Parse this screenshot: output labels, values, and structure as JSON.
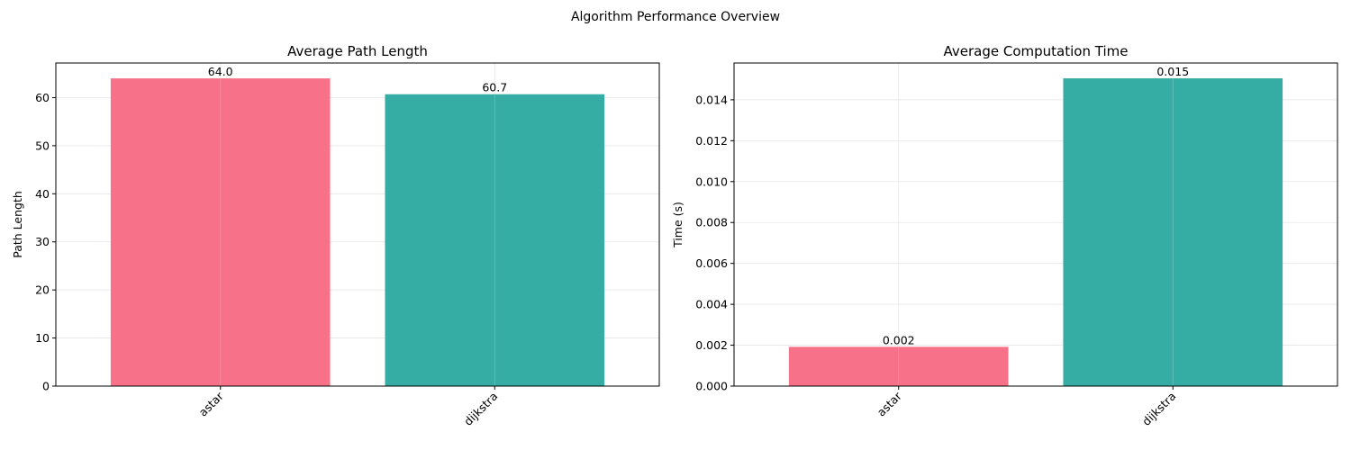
{
  "suptitle": "Algorithm Performance Overview",
  "colors": {
    "bar_1": "#f77189",
    "bar_2": "#36ada4",
    "grid": "#e6e6e6",
    "axis": "#000000"
  },
  "chart_data": [
    {
      "type": "bar",
      "title": "Average Path Length",
      "xlabel": "",
      "ylabel": "Path Length",
      "categories": [
        "astar",
        "dijkstra"
      ],
      "values": [
        64.0,
        60.7
      ],
      "value_labels": [
        "64.0",
        "60.7"
      ],
      "ylim": [
        0,
        67.2
      ],
      "yticks": [
        0,
        10,
        20,
        30,
        40,
        50,
        60
      ],
      "ytick_labels": [
        "0",
        "10",
        "20",
        "30",
        "40",
        "50",
        "60"
      ],
      "grid": true,
      "xtick_rotation": 45
    },
    {
      "type": "bar",
      "title": "Average Computation Time",
      "xlabel": "",
      "ylabel": "Time (s)",
      "categories": [
        "astar",
        "dijkstra"
      ],
      "values": [
        0.00192,
        0.01505
      ],
      "value_labels": [
        "0.002",
        "0.015"
      ],
      "ylim": [
        0,
        0.0158
      ],
      "yticks": [
        0,
        0.002,
        0.004,
        0.006,
        0.008,
        0.01,
        0.012,
        0.014
      ],
      "ytick_labels": [
        "0.000",
        "0.002",
        "0.004",
        "0.006",
        "0.008",
        "0.010",
        "0.012",
        "0.014"
      ],
      "grid": true,
      "xtick_rotation": 45
    }
  ]
}
